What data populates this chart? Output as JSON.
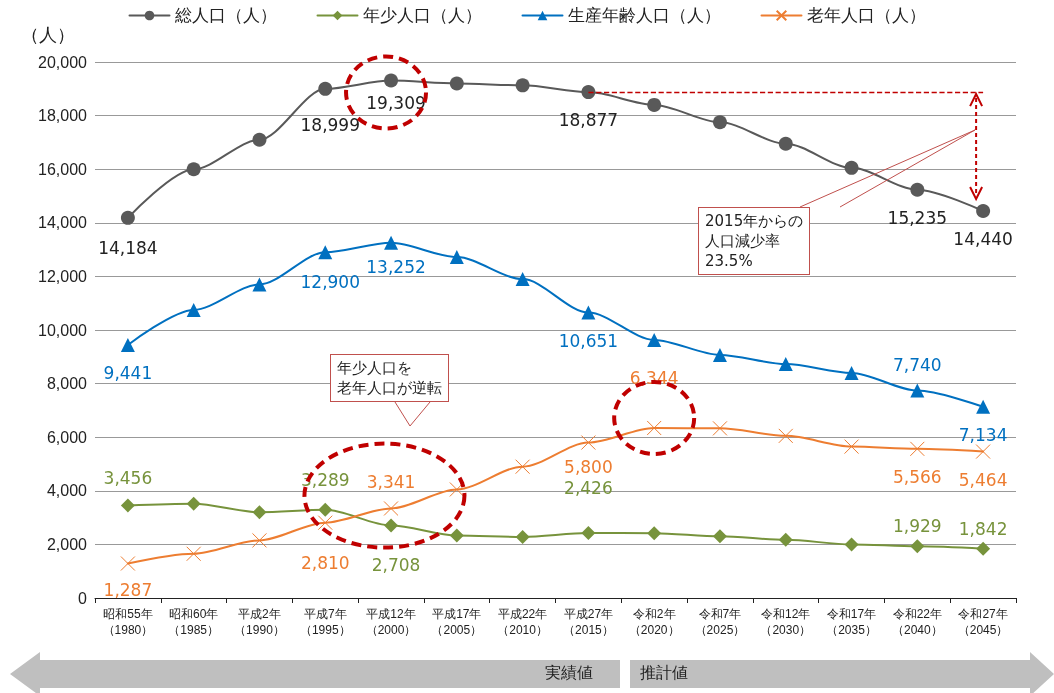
{
  "chart_data": {
    "type": "line",
    "ylabel": "（人）",
    "categories": [
      "昭和55年（1980）",
      "昭和60年（1985）",
      "平成2年（1990）",
      "平成7年（1995）",
      "平成12年（2000）",
      "平成17年（2005）",
      "平成22年（2010）",
      "平成27年（2015）",
      "令和2年（2020）",
      "令和7年（2025）",
      "令和12年（2030）",
      "令和17年（2035）",
      "令和22年（2040）",
      "令和27年（2045）"
    ],
    "series": [
      {
        "name": "総人口（人）",
        "color": "#595959",
        "marker": "circle",
        "values": [
          14184,
          16000,
          17100,
          18999,
          19309,
          19200,
          19130,
          18877,
          18400,
          17750,
          16950,
          16050,
          15235,
          14440
        ],
        "value_labels": [
          "14,184",
          null,
          null,
          "18,999",
          "19,309",
          null,
          null,
          "18,877",
          null,
          null,
          null,
          null,
          "15,235",
          "14,440"
        ]
      },
      {
        "name": "年少人口（人）",
        "color": "#77933c",
        "marker": "diamond",
        "values": [
          3456,
          3520,
          3200,
          3289,
          2708,
          2330,
          2280,
          2426,
          2420,
          2300,
          2170,
          2000,
          1929,
          1842
        ],
        "value_labels": [
          "3,456",
          null,
          null,
          "3,289",
          "2,708",
          null,
          null,
          "2,426",
          null,
          null,
          null,
          null,
          "1,929",
          "1,842"
        ]
      },
      {
        "name": "生産年齢人口（人）",
        "color": "#0070c0",
        "marker": "triangle",
        "values": [
          9441,
          10750,
          11700,
          12900,
          13252,
          12720,
          11900,
          10651,
          9630,
          9070,
          8730,
          8400,
          7740,
          7134
        ],
        "value_labels": [
          "9,441",
          null,
          null,
          "12,900",
          "13,252",
          null,
          null,
          "10,651",
          null,
          null,
          null,
          null,
          "7,740",
          "7,134"
        ]
      },
      {
        "name": "老年人口（人）",
        "color": "#ed7d31",
        "marker": "cross",
        "values": [
          1287,
          1650,
          2150,
          2810,
          3341,
          4050,
          4900,
          5800,
          6344,
          6330,
          6050,
          5650,
          5566,
          5464
        ],
        "value_labels": [
          "1,287",
          null,
          null,
          "2,810",
          "3,341",
          null,
          null,
          "5,800",
          "6,344",
          null,
          null,
          null,
          "5,566",
          "5,464"
        ]
      }
    ],
    "ylim": [
      0,
      20000
    ],
    "yticks": [
      {
        "value": 0,
        "label": "0"
      },
      {
        "value": 2000,
        "label": "2,000"
      },
      {
        "value": 4000,
        "label": "4,000"
      },
      {
        "value": 6000,
        "label": "6,000"
      },
      {
        "value": 8000,
        "label": "8,000"
      },
      {
        "value": 10000,
        "label": "10,000"
      },
      {
        "value": 12000,
        "label": "12,000"
      },
      {
        "value": 14000,
        "label": "14,000"
      },
      {
        "value": 16000,
        "label": "16,000"
      },
      {
        "value": 18000,
        "label": "18,000"
      },
      {
        "value": 20000,
        "label": "20,000"
      }
    ],
    "grid": "y",
    "legend": "top",
    "ref_lines": [
      {
        "axis": "y",
        "value": 18877,
        "label": null,
        "color": "#c00000",
        "line_style": "dashed"
      }
    ],
    "annotations": [
      "2015年からの人口減少率23.5%",
      "年少人口を老年人口が逆転",
      "実績値",
      "推計値"
    ]
  }
}
